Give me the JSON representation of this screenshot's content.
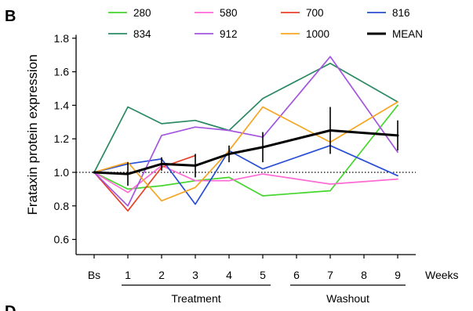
{
  "panel_letters": {
    "top": "B",
    "bottom": "D"
  },
  "chart_data": {
    "type": "line",
    "title": "",
    "xlabel": "Weeks",
    "ylabel": "Frataxin protein expression",
    "categories": [
      "Bs",
      "1",
      "2",
      "3",
      "4",
      "5",
      "6",
      "7",
      "8",
      "9"
    ],
    "yticks": [
      "0.6",
      "0.8",
      "1.0",
      "1.2",
      "1.4",
      "1.6",
      "1.8"
    ],
    "ylim": [
      0.5,
      1.85
    ],
    "reference_line": {
      "y": 1.0,
      "style": "dotted"
    },
    "legend": {
      "placement": "top",
      "columns": 4
    },
    "groups": [
      {
        "label": "Treatment",
        "from": "1",
        "to": "5"
      },
      {
        "label": "Washout",
        "from": "6",
        "to": "9"
      }
    ],
    "grid": false,
    "series": [
      {
        "name": "280",
        "color": "#44d62c",
        "points": [
          [
            0,
            1.0
          ],
          [
            1,
            0.9
          ],
          [
            2,
            0.92
          ],
          [
            3,
            0.95
          ],
          [
            4,
            0.97
          ],
          [
            5,
            0.86
          ],
          [
            7,
            0.89
          ],
          [
            9,
            1.4
          ]
        ]
      },
      {
        "name": "580",
        "color": "#ff6ad5",
        "points": [
          [
            0,
            1.0
          ],
          [
            1,
            0.88
          ],
          [
            2,
            1.04
          ],
          [
            3,
            0.95
          ],
          [
            4,
            0.95
          ],
          [
            5,
            0.99
          ],
          [
            7,
            0.93
          ],
          [
            9,
            0.96
          ]
        ]
      },
      {
        "name": "700",
        "color": "#e8412a",
        "points": [
          [
            0,
            1.0
          ],
          [
            1,
            0.77
          ],
          [
            2,
            1.03
          ],
          [
            3,
            1.1
          ]
        ]
      },
      {
        "name": "816",
        "color": "#2a4fd6",
        "points": [
          [
            0,
            1.0
          ],
          [
            1,
            1.05
          ],
          [
            2,
            1.08
          ],
          [
            3,
            0.81
          ],
          [
            4,
            1.13
          ],
          [
            5,
            1.02
          ],
          [
            7,
            1.16
          ],
          [
            9,
            0.98
          ]
        ]
      },
      {
        "name": "834",
        "color": "#2b8a63",
        "points": [
          [
            0,
            1.0
          ],
          [
            1,
            1.39
          ],
          [
            2,
            1.29
          ],
          [
            3,
            1.31
          ],
          [
            4,
            1.25
          ],
          [
            5,
            1.44
          ],
          [
            7,
            1.65
          ],
          [
            9,
            1.42
          ]
        ]
      },
      {
        "name": "912",
        "color": "#a455e0",
        "points": [
          [
            0,
            1.0
          ],
          [
            1,
            0.8
          ],
          [
            2,
            1.22
          ],
          [
            3,
            1.27
          ],
          [
            4,
            1.25
          ],
          [
            5,
            1.21
          ],
          [
            7,
            1.69
          ],
          [
            9,
            1.12
          ]
        ]
      },
      {
        "name": "1000",
        "color": "#f5a623",
        "points": [
          [
            0,
            1.0
          ],
          [
            1,
            1.06
          ],
          [
            2,
            0.83
          ],
          [
            3,
            0.91
          ],
          [
            4,
            1.13
          ],
          [
            5,
            1.39
          ],
          [
            7,
            1.18
          ],
          [
            9,
            1.42
          ]
        ]
      },
      {
        "name": "MEAN",
        "color": "#000000",
        "points": [
          [
            0,
            1.0
          ],
          [
            1,
            0.99
          ],
          [
            2,
            1.05
          ],
          [
            3,
            1.04
          ],
          [
            4,
            1.11
          ],
          [
            5,
            1.15
          ],
          [
            7,
            1.25
          ],
          [
            9,
            1.22
          ]
        ],
        "error": [
          0,
          0.07,
          0.04,
          0.07,
          0.05,
          0.09,
          0.14,
          0.09
        ]
      }
    ]
  }
}
